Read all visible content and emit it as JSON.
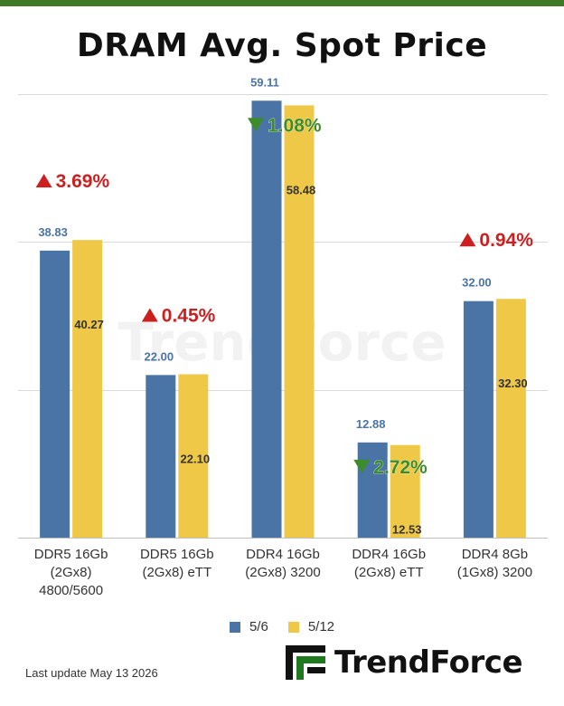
{
  "title": "DRAM Avg. Spot Price",
  "footer": {
    "last_update": "Last update  May 13  2026"
  },
  "brand": {
    "name": "TrendForce",
    "watermark": "TrendForce"
  },
  "colors": {
    "series_1": "#4a74a6",
    "series_2": "#f0c847",
    "up": "#cc1f1f",
    "down": "#3d8c2a",
    "header_bar": "#3f7a26",
    "label_blue": "#4a74a6"
  },
  "chart_data": {
    "type": "bar",
    "title": "DRAM Avg. Spot Price",
    "categories": [
      [
        "DDR5 16Gb",
        "(2Gx8)",
        "4800/5600"
      ],
      [
        "DDR5 16Gb",
        "(2Gx8) eTT"
      ],
      [
        "DDR4 16Gb",
        "(2Gx8) 3200"
      ],
      [
        "DDR4 16Gb",
        "(2Gx8) eTT"
      ],
      [
        "DDR4 8Gb",
        "(1Gx8) 3200"
      ]
    ],
    "series": [
      {
        "name": "5/6",
        "values": [
          38.83,
          22.0,
          59.11,
          12.88,
          32.0
        ],
        "labels": [
          "38.83",
          "22.00",
          "59.11",
          "12.88",
          "32.00"
        ]
      },
      {
        "name": "5/12",
        "values": [
          40.27,
          22.1,
          58.48,
          12.53,
          32.3
        ],
        "labels": [
          "40.27",
          "22.10",
          "58.48",
          "12.53",
          "32.30"
        ]
      }
    ],
    "changes": [
      {
        "direction": "up",
        "text": "3.69%"
      },
      {
        "direction": "up",
        "text": "0.45%"
      },
      {
        "direction": "down",
        "text": "1.08%"
      },
      {
        "direction": "down",
        "text": "2.72%"
      },
      {
        "direction": "up",
        "text": "0.94%"
      }
    ],
    "ylim": [
      0,
      60
    ],
    "grid": true,
    "legend": "bottom"
  }
}
